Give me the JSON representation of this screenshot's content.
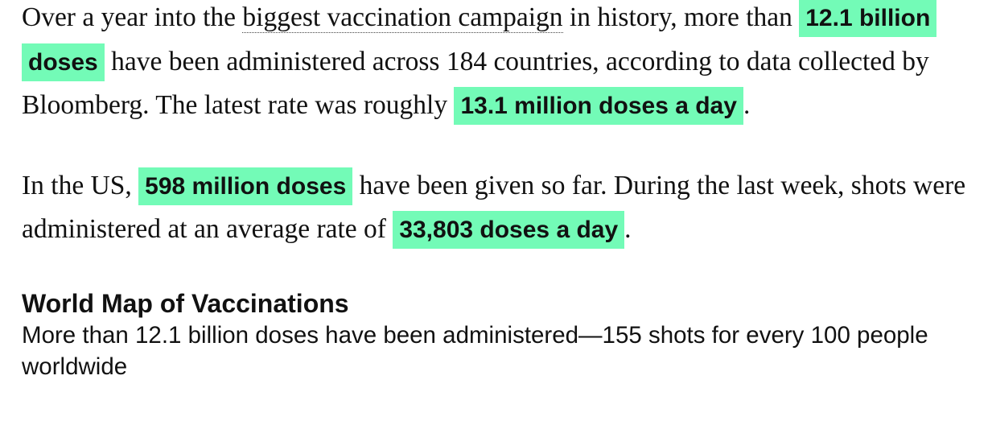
{
  "paragraph1": {
    "t1": "Over a year into the ",
    "link": "biggest vaccination campaign",
    "t2": " in history, more than ",
    "h1": "12.1 billion doses",
    "t3": " have been administered across 184 countries, according to data collected by Bloomberg. The latest rate was roughly ",
    "h2": "13.1 million doses a day",
    "t4": "."
  },
  "paragraph2": {
    "t1": "In the US, ",
    "h1": "598 million doses",
    "t2": " have been given so far. During the last week, shots were administered at an average rate of ",
    "h2": "33,803 doses a day",
    "t3": "."
  },
  "map_section": {
    "title": "World Map of Vaccinations",
    "subtitle": "More than 12.1 billion doses have been administered—155 shots for every 100 people worldwide"
  },
  "colors": {
    "highlight": "#73fbb7"
  }
}
